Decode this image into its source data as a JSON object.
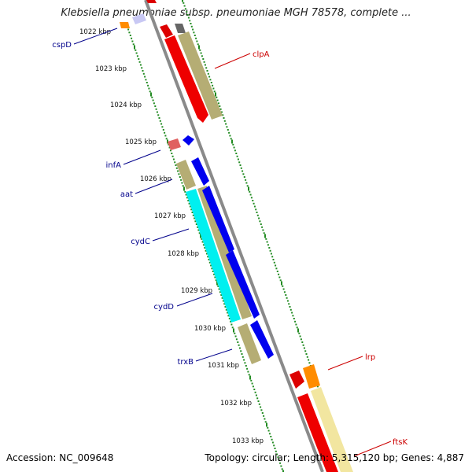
{
  "title": "Klebsiella pneumoniae subsp. pneumoniae MGH 78578, complete ...",
  "footer": {
    "accession_label": "Accession:",
    "accession": "NC_009648",
    "topology_text": "Topology: circular; Length: 5,315,120 bp; Genes: 4,887"
  },
  "colors": {
    "backbone": "#8a8a8a",
    "tick_dots": "#228b22",
    "forward_label": "#cc0000",
    "reverse_label": "#00008b"
  },
  "ticks": [
    {
      "label": "1022 kbp"
    },
    {
      "label": "1023 kbp"
    },
    {
      "label": "1024 kbp"
    },
    {
      "label": "1025 kbp"
    },
    {
      "label": "1026 kbp"
    },
    {
      "label": "1027 kbp"
    },
    {
      "label": "1028 kbp"
    },
    {
      "label": "1029 kbp"
    },
    {
      "label": "1030 kbp"
    },
    {
      "label": "1031 kbp"
    },
    {
      "label": "1032 kbp"
    },
    {
      "label": "1033 kbp"
    }
  ],
  "gene_labels": [
    {
      "name": "clpA",
      "strand": "forward"
    },
    {
      "name": "lrp",
      "strand": "forward"
    },
    {
      "name": "ftsK",
      "strand": "forward"
    },
    {
      "name": "cspD",
      "strand": "reverse"
    },
    {
      "name": "infA",
      "strand": "reverse"
    },
    {
      "name": "aat",
      "strand": "reverse"
    },
    {
      "name": "cydC",
      "strand": "reverse"
    },
    {
      "name": "cydD",
      "strand": "reverse"
    },
    {
      "name": "trxB",
      "strand": "reverse"
    }
  ]
}
